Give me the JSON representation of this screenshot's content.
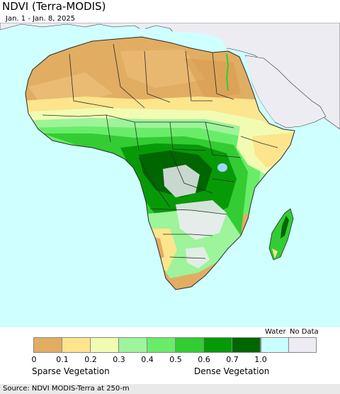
{
  "header": {
    "title": "NDVI (Terra-MODIS)",
    "date_range": "Jan. 1 - Jan. 8, 2025"
  },
  "legend": {
    "bins": [
      {
        "color": "#e1ad63"
      },
      {
        "color": "#fce58d"
      },
      {
        "color": "#f1fcb2"
      },
      {
        "color": "#9df49a"
      },
      {
        "color": "#69ed69"
      },
      {
        "color": "#33cc33"
      },
      {
        "color": "#079a07"
      },
      {
        "color": "#006600"
      }
    ],
    "ticks": [
      "0",
      "0.1",
      "0.2",
      "0.3",
      "0.4",
      "0.5",
      "0.6",
      "0.7",
      "1.0"
    ],
    "water": {
      "label": "Water",
      "color": "#c9ffff"
    },
    "no_data": {
      "label": "No Data",
      "color": "#ececf2"
    },
    "low_label": "Sparse Vegetation",
    "high_label": "Dense Vegetation"
  },
  "colors": {
    "ocean": "#cfffff",
    "non_africa_land": "#ececf2",
    "desert": "#e1ad63",
    "sahel": "#fce58d",
    "border": "#2a2a2a"
  },
  "footer": {
    "source": "Source: NDVI MODIS-Terra at 250-m"
  }
}
